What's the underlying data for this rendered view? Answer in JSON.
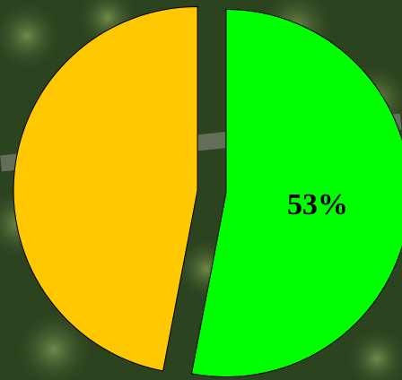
{
  "chart_data": {
    "type": "pie",
    "categories": [
      null,
      null
    ],
    "values": [
      53,
      47
    ],
    "value_labels": [
      "53%",
      null
    ],
    "colors": [
      "#00ff00",
      "#ffc800"
    ]
  }
}
